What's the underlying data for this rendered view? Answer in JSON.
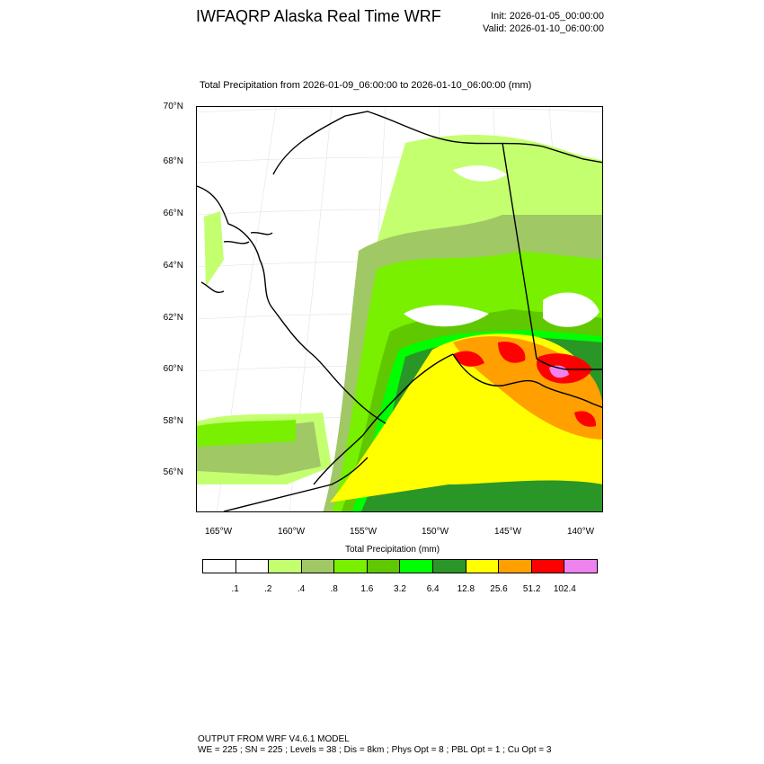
{
  "header": {
    "title": "IWFAQRP Alaska Real Time WRF",
    "init": "Init: 2026-01-05_00:00:00",
    "valid": "Valid: 2026-01-10_06:00:00",
    "subtitle": "Total Precipitation from 2026-01-09_06:00:00 to 2026-01-10_06:00:00   (mm)"
  },
  "map": {
    "lat_labels": [
      "70°N",
      "68°N",
      "66°N",
      "64°N",
      "62°N",
      "60°N",
      "58°N",
      "56°N"
    ],
    "lon_labels": [
      "165°W",
      "160°W",
      "155°W",
      "150°W",
      "145°W",
      "140°W"
    ],
    "coastline_color": "#000000"
  },
  "colorbar": {
    "title": "Total Precipitation  (mm)",
    "colors": [
      "#ffffff",
      "#ffffff",
      "#c4ff70",
      "#a0c864",
      "#78f000",
      "#5fc800",
      "#00ff00",
      "#2a9628",
      "#ffff00",
      "#ffa000",
      "#ff0000",
      "#ee82ee"
    ],
    "labels": [
      ".1",
      ".2",
      ".4",
      ".8",
      "1.6",
      "3.2",
      "6.4",
      "12.8",
      "25.6",
      "51.2",
      "102.4"
    ]
  },
  "footer": {
    "line1": "OUTPUT FROM WRF V4.6.1 MODEL",
    "line2": "WE = 225 ; SN = 225 ; Levels = 38 ; Dis = 8km ; Phys Opt = 8 ; PBL Opt = 1 ; Cu Opt = 3"
  }
}
